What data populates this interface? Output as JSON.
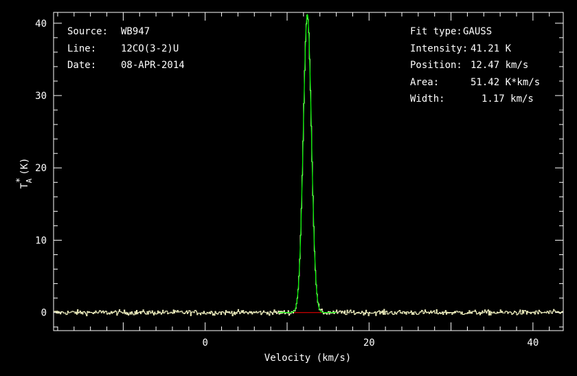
{
  "info_left": [
    {
      "key": "Source:",
      "value": "WB947"
    },
    {
      "key": "Line:",
      "value": "12CO(3-2)U"
    },
    {
      "key": "Date:",
      "value": "08-APR-2014"
    }
  ],
  "info_right": [
    {
      "key": "Fit type:",
      "value": "GAUSS"
    },
    {
      "key": "Intensity:",
      "value": "41.21 K"
    },
    {
      "key": "Position:",
      "value": "12.47 km/s"
    },
    {
      "key": "Area:",
      "value": "51.42 K*km/s"
    },
    {
      "key": "Width:",
      "value": "1.17 km/s"
    }
  ],
  "chart_data": {
    "type": "line",
    "xlabel": "Velocity (km/s)",
    "ylabel_main": "T",
    "ylabel_sub": "A",
    "ylabel_sup": "*",
    "ylabel_unit": "(K)",
    "xlim": [
      -18.5,
      43.7
    ],
    "ylim": [
      -2.5,
      41.5
    ],
    "x_ticks": [
      "0",
      "20",
      "40"
    ],
    "y_ticks": [
      "0",
      "10",
      "20",
      "30",
      "40"
    ],
    "grid": false,
    "colors": {
      "background": "#000000",
      "axes": "#ffffff",
      "data": "#ffffcc",
      "fit": "#00ff00",
      "baseline": "#ff0000"
    },
    "series": [
      {
        "kind": "gaussian_fit",
        "amplitude": 41.21,
        "center": 12.47,
        "fwhm": 1.17
      },
      {
        "kind": "baseline",
        "x": [
          10.8,
          14.2
        ],
        "y": [
          0,
          0
        ]
      },
      {
        "kind": "spectrum",
        "x_start": -18.5,
        "x_end": 43.7,
        "step": 0.1,
        "noise_rms": 0.25,
        "peak_y": 41.2
      }
    ]
  }
}
